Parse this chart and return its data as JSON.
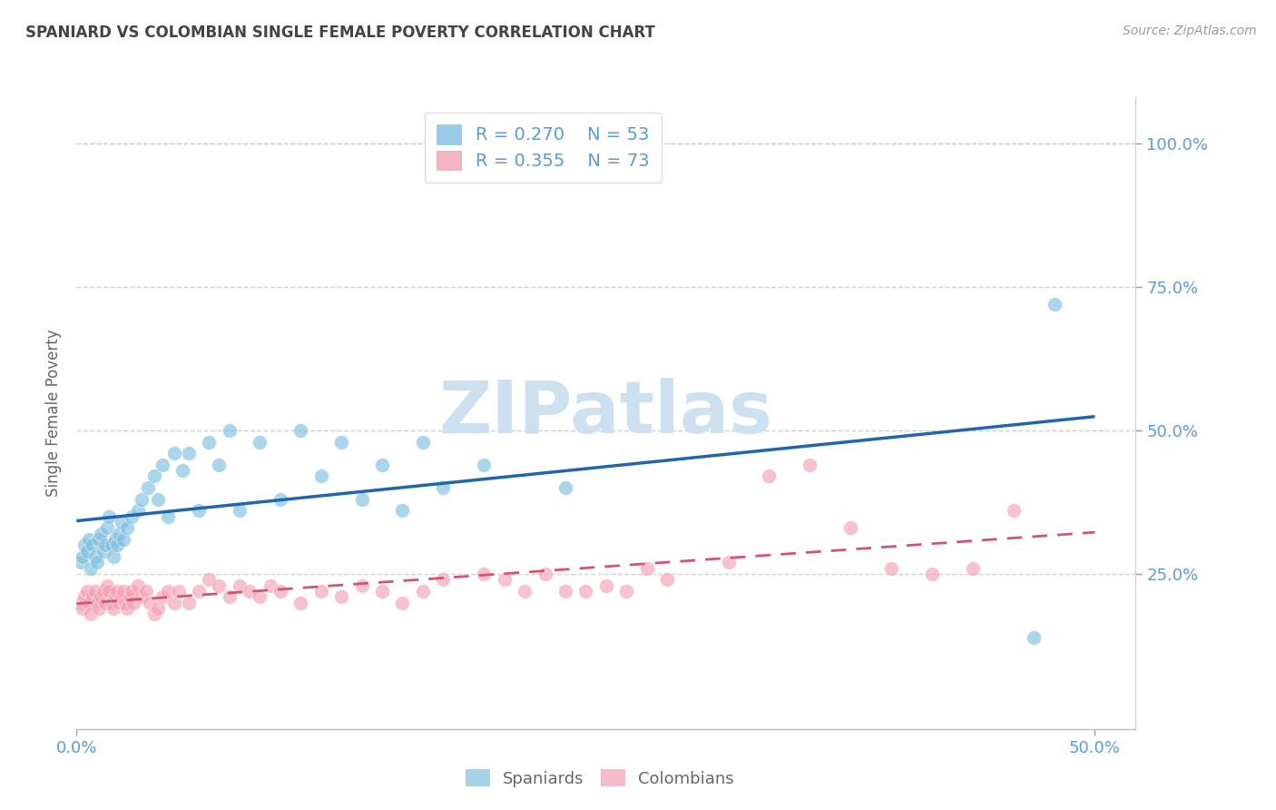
{
  "title": "SPANIARD VS COLOMBIAN SINGLE FEMALE POVERTY CORRELATION CHART",
  "source": "Source: ZipAtlas.com",
  "ylabel": "Single Female Poverty",
  "watermark": "ZIPatlas",
  "xlim": [
    0.0,
    0.52
  ],
  "ylim": [
    -0.02,
    1.08
  ],
  "blue_color": "#7fbfdf",
  "blue_line_color": "#2166ac",
  "pink_color": "#f4a0b5",
  "pink_line_color": "#d6536d",
  "title_color": "#444444",
  "axis_label_color": "#666666",
  "tick_label_color": "#5b9bd5",
  "grid_color": "#d0d0d0",
  "watermark_color": "#cce0f0",
  "legend_r_blue": "R = 0.270",
  "legend_n_blue": "N = 53",
  "legend_r_pink": "R = 0.355",
  "legend_n_pink": "N = 73",
  "spaniards_x": [
    0.002,
    0.003,
    0.004,
    0.005,
    0.006,
    0.007,
    0.008,
    0.009,
    0.01,
    0.011,
    0.012,
    0.013,
    0.014,
    0.015,
    0.016,
    0.017,
    0.018,
    0.019,
    0.02,
    0.021,
    0.022,
    0.023,
    0.025,
    0.027,
    0.03,
    0.032,
    0.035,
    0.038,
    0.04,
    0.042,
    0.045,
    0.048,
    0.052,
    0.055,
    0.06,
    0.065,
    0.07,
    0.075,
    0.08,
    0.09,
    0.1,
    0.11,
    0.12,
    0.13,
    0.14,
    0.15,
    0.16,
    0.17,
    0.18,
    0.2,
    0.24,
    0.47,
    0.48
  ],
  "spaniards_y": [
    0.27,
    0.28,
    0.3,
    0.29,
    0.31,
    0.26,
    0.3,
    0.28,
    0.27,
    0.31,
    0.32,
    0.29,
    0.3,
    0.33,
    0.35,
    0.3,
    0.28,
    0.31,
    0.3,
    0.32,
    0.34,
    0.31,
    0.33,
    0.35,
    0.36,
    0.38,
    0.4,
    0.42,
    0.38,
    0.44,
    0.35,
    0.46,
    0.43,
    0.46,
    0.36,
    0.48,
    0.44,
    0.5,
    0.36,
    0.48,
    0.38,
    0.5,
    0.42,
    0.48,
    0.38,
    0.44,
    0.36,
    0.48,
    0.4,
    0.44,
    0.4,
    0.14,
    0.72
  ],
  "colombians_x": [
    0.002,
    0.003,
    0.004,
    0.005,
    0.006,
    0.007,
    0.008,
    0.009,
    0.01,
    0.011,
    0.012,
    0.013,
    0.014,
    0.015,
    0.016,
    0.017,
    0.018,
    0.019,
    0.02,
    0.021,
    0.022,
    0.023,
    0.024,
    0.025,
    0.026,
    0.027,
    0.028,
    0.03,
    0.032,
    0.034,
    0.036,
    0.038,
    0.04,
    0.042,
    0.045,
    0.048,
    0.05,
    0.055,
    0.06,
    0.065,
    0.07,
    0.075,
    0.08,
    0.085,
    0.09,
    0.095,
    0.1,
    0.11,
    0.12,
    0.13,
    0.14,
    0.15,
    0.16,
    0.17,
    0.18,
    0.2,
    0.21,
    0.22,
    0.23,
    0.24,
    0.25,
    0.26,
    0.27,
    0.28,
    0.29,
    0.32,
    0.34,
    0.36,
    0.38,
    0.4,
    0.42,
    0.44,
    0.46
  ],
  "colombians_y": [
    0.2,
    0.19,
    0.21,
    0.22,
    0.2,
    0.18,
    0.21,
    0.22,
    0.2,
    0.19,
    0.21,
    0.22,
    0.2,
    0.23,
    0.22,
    0.2,
    0.19,
    0.21,
    0.22,
    0.2,
    0.21,
    0.22,
    0.2,
    0.19,
    0.21,
    0.22,
    0.2,
    0.23,
    0.21,
    0.22,
    0.2,
    0.18,
    0.19,
    0.21,
    0.22,
    0.2,
    0.22,
    0.2,
    0.22,
    0.24,
    0.23,
    0.21,
    0.23,
    0.22,
    0.21,
    0.23,
    0.22,
    0.2,
    0.22,
    0.21,
    0.23,
    0.22,
    0.2,
    0.22,
    0.24,
    0.25,
    0.24,
    0.22,
    0.25,
    0.22,
    0.22,
    0.23,
    0.22,
    0.26,
    0.24,
    0.27,
    0.42,
    0.44,
    0.33,
    0.26,
    0.25,
    0.26,
    0.36
  ]
}
